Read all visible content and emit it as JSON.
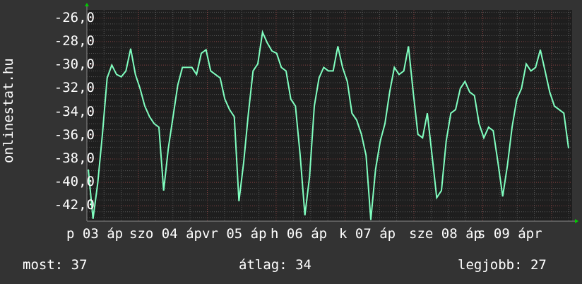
{
  "chart_data": {
    "type": "line",
    "ylabel": "onlinestat.hu",
    "ylim": [
      -43.3,
      -25.3
    ],
    "yticks": [
      "-26,0",
      "-28,0",
      "-30,0",
      "-32,0",
      "-34,0",
      "-36,0",
      "-38,0",
      "-40,0",
      "-42,0"
    ],
    "ytick_values": [
      -26,
      -28,
      -30,
      -32,
      -34,
      -36,
      -38,
      -40,
      -42
    ],
    "xtick_labels": [
      "p 03 áp",
      "szo 04 áp",
      "vr 05 áp",
      "h 06 áp",
      "k 07 áp",
      "sze 08 áp",
      "s 09 ápr"
    ],
    "grid": true,
    "line_color": "#80ffc0",
    "values": [
      -38.9,
      -43.1,
      -40.1,
      -35.9,
      -31.1,
      -30.0,
      -30.8,
      -31.0,
      -30.5,
      -28.6,
      -30.8,
      -32.0,
      -33.5,
      -34.4,
      -35.0,
      -35.3,
      -40.7,
      -37.1,
      -34.4,
      -31.7,
      -30.2,
      -30.2,
      -30.2,
      -30.8,
      -29.0,
      -28.7,
      -30.5,
      -30.8,
      -31.1,
      -32.9,
      -33.8,
      -34.4,
      -41.6,
      -38.3,
      -34.1,
      -30.5,
      -29.9,
      -27.2,
      -28.1,
      -28.8,
      -29.0,
      -30.2,
      -30.5,
      -32.9,
      -33.5,
      -37.7,
      -42.8,
      -39.5,
      -33.5,
      -31.1,
      -30.2,
      -30.5,
      -30.5,
      -28.4,
      -30.2,
      -31.4,
      -34.1,
      -34.7,
      -35.9,
      -37.7,
      -43.2,
      -38.9,
      -36.5,
      -35.0,
      -32.3,
      -30.2,
      -30.8,
      -30.5,
      -28.4,
      -32.3,
      -35.9,
      -36.2,
      -34.1,
      -37.7,
      -41.3,
      -40.7,
      -36.5,
      -34.1,
      -33.8,
      -32.0,
      -31.4,
      -32.3,
      -32.6,
      -35.0,
      -36.2,
      -35.3,
      -35.6,
      -38.3,
      -41.2,
      -38.6,
      -35.3,
      -32.9,
      -32.0,
      -29.9,
      -30.5,
      -30.2,
      -28.7,
      -30.5,
      -32.3,
      -33.5,
      -33.8,
      -34.1,
      -37.1
    ]
  },
  "legend": {
    "current": "most: 37",
    "average": "átlag: 34",
    "best": "legjobb: 27"
  },
  "colors": {
    "background": "#333333",
    "plot": "#1e1e1e",
    "line": "#80ffc0",
    "arrow": "#00cc00",
    "major_grid": "#804040"
  }
}
